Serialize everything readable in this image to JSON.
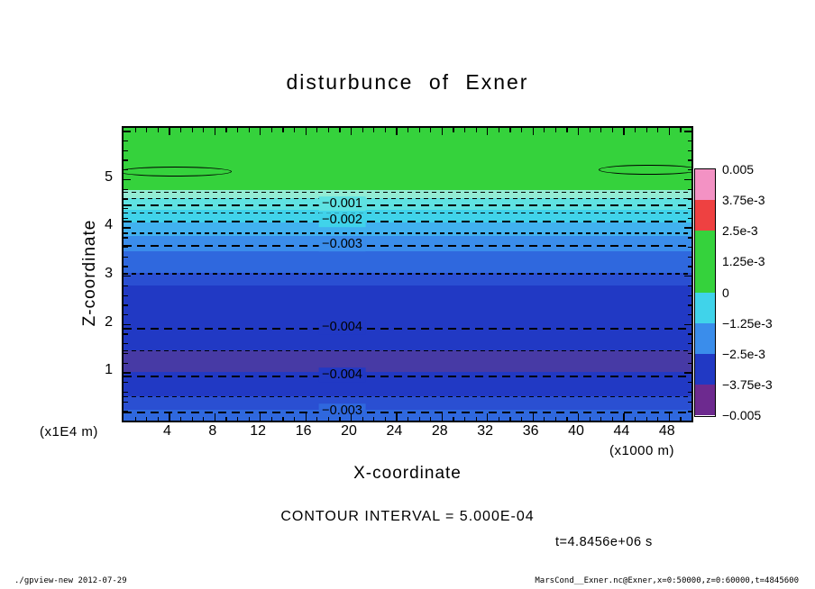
{
  "page": {
    "contour_interval_text": "CONTOUR INTERVAL = 5.000E-04",
    "time_text": "t=4.8456e+06 s",
    "footer_left": "./gpview-new  2012-07-29",
    "footer_right": "MarsCond__Exner.nc@Exner,x=0:50000,z=0:60000,t=4845600"
  },
  "chart_data": {
    "type": "heatmap",
    "title": "disturbunce of Exner",
    "xlabel": "X-coordinate",
    "ylabel": "Z-coordinate",
    "x_unit": "(x1000 m)",
    "z_unit": "(x1E4 m)",
    "contour_interval": 0.0005,
    "x_axis": {
      "min": 0,
      "max": 50,
      "minor_step": 1,
      "major_step": 4,
      "major_ticks": [
        4,
        8,
        12,
        16,
        20,
        24,
        28,
        32,
        36,
        40,
        44,
        48
      ]
    },
    "z_axis": {
      "min": 0,
      "max": 6.06,
      "minor_step": 0.2,
      "major_step": 1,
      "major_ticks": [
        1,
        2,
        3,
        4,
        5
      ]
    },
    "bands": [
      {
        "z_top": 6.06,
        "z_bottom": 4.78,
        "color": "#35d23c"
      },
      {
        "z_top": 4.78,
        "z_bottom": 4.6,
        "color": "#93ebd4"
      },
      {
        "z_top": 4.6,
        "z_bottom": 4.37,
        "color": "#5fe2e2"
      },
      {
        "z_top": 4.37,
        "z_bottom": 4.1,
        "color": "#40d3ea"
      },
      {
        "z_top": 4.1,
        "z_bottom": 3.82,
        "color": "#41b1ef"
      },
      {
        "z_top": 3.82,
        "z_bottom": 3.5,
        "color": "#3a8deb"
      },
      {
        "z_top": 3.5,
        "z_bottom": 3.05,
        "color": "#2f68de"
      },
      {
        "z_top": 3.05,
        "z_bottom": 2.8,
        "color": "#2a4fd2"
      },
      {
        "z_top": 2.8,
        "z_bottom": 1.45,
        "color": "#2139c4"
      },
      {
        "z_top": 1.45,
        "z_bottom": 1.0,
        "color": "#473aa5"
      },
      {
        "z_top": 1.0,
        "z_bottom": 0.5,
        "color": "#2139c4"
      },
      {
        "z_top": 0.5,
        "z_bottom": 0.22,
        "color": "#2a4fd2"
      },
      {
        "z_top": 0.22,
        "z_bottom": 0.0,
        "color": "#2f68de"
      }
    ],
    "contour_lines": [
      {
        "z": 4.74,
        "label": ""
      },
      {
        "z": 4.6,
        "label": ""
      },
      {
        "z": 4.48,
        "label": "−0.001"
      },
      {
        "z": 4.31,
        "label": ""
      },
      {
        "z": 4.14,
        "label": "−0.002"
      },
      {
        "z": 3.89,
        "label": ""
      },
      {
        "z": 3.64,
        "label": "−0.003"
      },
      {
        "z": 3.05,
        "label": ""
      },
      {
        "z": 1.92,
        "label": "−0.004"
      },
      {
        "z": 1.45,
        "label": ""
      },
      {
        "z": 0.94,
        "label": "−0.004"
      },
      {
        "z": 0.5,
        "label": ""
      },
      {
        "z": 0.18,
        "label": "−0.003"
      }
    ],
    "zero_contours": [
      {
        "x_start": -0.5,
        "x_end": 9.4,
        "z": 5.18,
        "half_height": 0.085
      },
      {
        "x_start": 41.8,
        "x_end": 50.5,
        "z": 5.21,
        "half_height": 0.09
      }
    ],
    "colorbar": {
      "labels": [
        "0.005",
        "3.75e-3",
        "2.5e-3",
        "1.25e-3",
        "0",
        "−1.25e-3",
        "−2.5e-3",
        "−3.75e-3",
        "−0.005"
      ],
      "segment_colors": [
        "#f392c4",
        "#ee4141",
        "#35d23c",
        "#35d23c",
        "#40d3ea",
        "#3a8deb",
        "#2139c4",
        "#6d2a8f"
      ]
    }
  }
}
